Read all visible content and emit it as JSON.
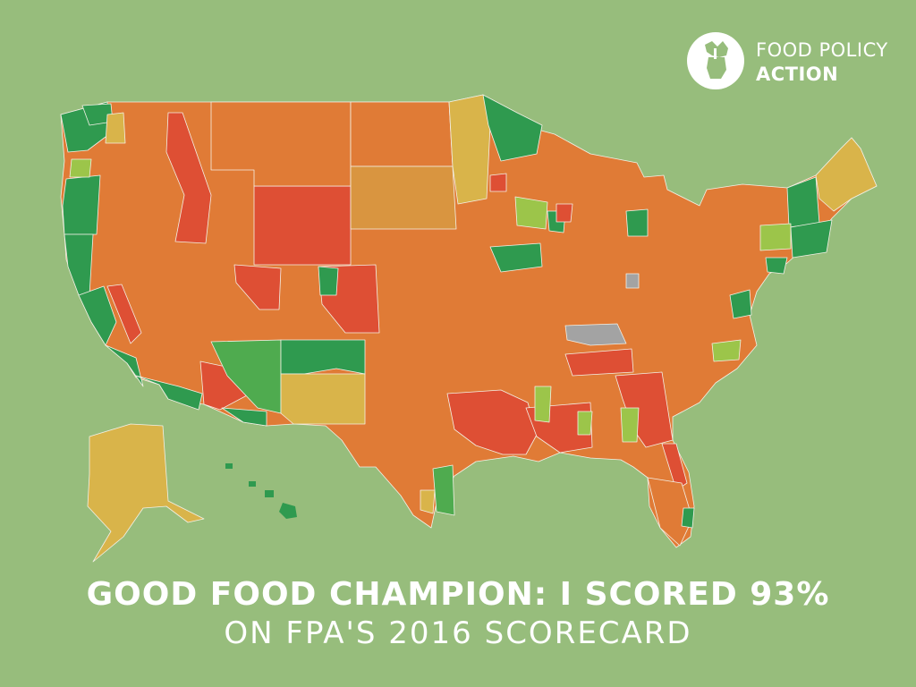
{
  "brand": {
    "line1": "FOOD POLICY",
    "line2": "ACTION",
    "icon": "fist-holding-vegetables-icon"
  },
  "headline": "GOOD FOOD CHAMPION: I SCORED 93%",
  "subline": "ON FPA'S 2016 SCORECARD",
  "colors": {
    "background": "#97bd7c",
    "district_border": "#f3f0e6",
    "high_score": "#2f9a4f",
    "upper_score": "#4fab4f",
    "mid_high_score": "#9cc54a",
    "middle_score": "#d9b44a",
    "lower_score": "#e07b36",
    "low_score": "#de4f34",
    "no_data": "#a3a3a3"
  }
}
